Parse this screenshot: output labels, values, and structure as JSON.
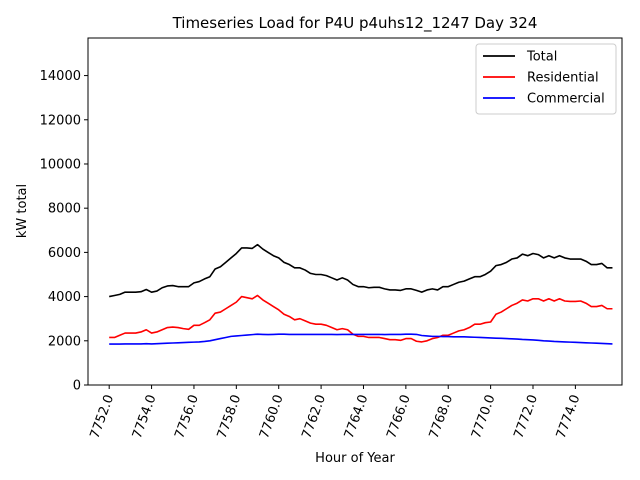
{
  "chart_data": {
    "type": "line",
    "title": "Timeseries Load for P4U p4uhs12_1247  Day 324",
    "xlabel": "Hour of Year",
    "ylabel": "kW total",
    "xlim": [
      7751.0,
      7776.2
    ],
    "ylim": [
      0,
      15700
    ],
    "x_ticks": [
      7752,
      7754,
      7756,
      7758,
      7760,
      7762,
      7764,
      7766,
      7768,
      7770,
      7772,
      7774
    ],
    "x_tick_labels": [
      "7752.0",
      "7754.0",
      "7756.0",
      "7758.0",
      "7760.0",
      "7762.0",
      "7764.0",
      "7766.0",
      "7768.0",
      "7770.0",
      "7772.0",
      "7774.0"
    ],
    "y_ticks": [
      0,
      2000,
      4000,
      6000,
      8000,
      10000,
      12000,
      14000
    ],
    "y_tick_labels": [
      "0",
      "2000",
      "4000",
      "6000",
      "8000",
      "10000",
      "12000",
      "14000"
    ],
    "grid": false,
    "legend_position": "top-right",
    "x": [
      7752.0,
      7752.25,
      7752.5,
      7752.75,
      7753.0,
      7753.25,
      7753.5,
      7753.75,
      7754.0,
      7754.25,
      7754.5,
      7754.75,
      7755.0,
      7755.25,
      7755.5,
      7755.75,
      7756.0,
      7756.25,
      7756.5,
      7756.75,
      7757.0,
      7757.25,
      7757.5,
      7757.75,
      7758.0,
      7758.25,
      7758.5,
      7758.75,
      7759.0,
      7759.25,
      7759.5,
      7759.75,
      7760.0,
      7760.25,
      7760.5,
      7760.75,
      7761.0,
      7761.25,
      7761.5,
      7761.75,
      7762.0,
      7762.25,
      7762.5,
      7762.75,
      7763.0,
      7763.25,
      7763.5,
      7763.75,
      7764.0,
      7764.25,
      7764.5,
      7764.75,
      7765.0,
      7765.25,
      7765.5,
      7765.75,
      7766.0,
      7766.25,
      7766.5,
      7766.75,
      7767.0,
      7767.25,
      7767.5,
      7767.75,
      7768.0,
      7768.25,
      7768.5,
      7768.75,
      7769.0,
      7769.25,
      7769.5,
      7769.75,
      7770.0,
      7770.25,
      7770.5,
      7770.75,
      7771.0,
      7771.25,
      7771.5,
      7771.75,
      7772.0,
      7772.25,
      7772.5,
      7772.75,
      7773.0,
      7773.25,
      7773.5,
      7773.75,
      7774.0,
      7774.25,
      7774.5,
      7774.75,
      7775.0,
      7775.25,
      7775.5,
      7775.75
    ],
    "series": [
      {
        "name": "Total",
        "color": "#000000",
        "values": [
          4000,
          4050,
          4100,
          4200,
          4200,
          4200,
          4220,
          4320,
          4200,
          4250,
          4400,
          4480,
          4500,
          4450,
          4450,
          4450,
          4620,
          4680,
          4800,
          4900,
          5250,
          5350,
          5550,
          5750,
          5950,
          6200,
          6200,
          6180,
          6350,
          6150,
          6000,
          5850,
          5750,
          5550,
          5450,
          5300,
          5300,
          5200,
          5050,
          5000,
          5000,
          4950,
          4850,
          4750,
          4850,
          4750,
          4550,
          4450,
          4450,
          4400,
          4420,
          4420,
          4350,
          4300,
          4300,
          4280,
          4350,
          4350,
          4280,
          4200,
          4300,
          4350,
          4300,
          4450,
          4450,
          4550,
          4650,
          4700,
          4800,
          4900,
          4900,
          5000,
          5150,
          5400,
          5450,
          5550,
          5700,
          5750,
          5920,
          5850,
          5950,
          5900,
          5750,
          5850,
          5750,
          5850,
          5750,
          5700,
          5700,
          5700,
          5600,
          5450,
          5450,
          5500,
          5300,
          5300
        ]
      },
      {
        "name": "Residential",
        "color": "#ff0000",
        "values": [
          2150,
          2150,
          2250,
          2350,
          2350,
          2350,
          2400,
          2500,
          2350,
          2400,
          2500,
          2600,
          2620,
          2600,
          2550,
          2520,
          2700,
          2700,
          2820,
          2950,
          3250,
          3300,
          3450,
          3600,
          3750,
          4000,
          3950,
          3900,
          4050,
          3850,
          3700,
          3550,
          3400,
          3200,
          3100,
          2950,
          3000,
          2900,
          2800,
          2750,
          2750,
          2700,
          2600,
          2500,
          2550,
          2500,
          2300,
          2200,
          2200,
          2150,
          2150,
          2150,
          2100,
          2050,
          2050,
          2020,
          2100,
          2100,
          1980,
          1950,
          2000,
          2100,
          2150,
          2250,
          2250,
          2350,
          2450,
          2500,
          2600,
          2750,
          2750,
          2820,
          2850,
          3200,
          3300,
          3450,
          3600,
          3700,
          3850,
          3800,
          3900,
          3900,
          3800,
          3900,
          3800,
          3900,
          3800,
          3780,
          3780,
          3800,
          3700,
          3550,
          3550,
          3600,
          3450,
          3450
        ]
      },
      {
        "name": "Commercial",
        "color": "#0000ff",
        "values": [
          1850,
          1850,
          1850,
          1860,
          1860,
          1860,
          1860,
          1870,
          1860,
          1870,
          1880,
          1890,
          1900,
          1910,
          1920,
          1930,
          1940,
          1950,
          1970,
          2000,
          2050,
          2100,
          2150,
          2200,
          2220,
          2240,
          2260,
          2280,
          2300,
          2290,
          2280,
          2290,
          2300,
          2300,
          2290,
          2290,
          2290,
          2290,
          2290,
          2290,
          2290,
          2290,
          2290,
          2280,
          2290,
          2290,
          2290,
          2290,
          2290,
          2290,
          2290,
          2290,
          2280,
          2290,
          2290,
          2290,
          2300,
          2300,
          2290,
          2240,
          2220,
          2200,
          2200,
          2190,
          2190,
          2180,
          2180,
          2180,
          2170,
          2160,
          2150,
          2140,
          2130,
          2120,
          2110,
          2100,
          2090,
          2080,
          2060,
          2050,
          2040,
          2020,
          2000,
          1990,
          1970,
          1960,
          1950,
          1940,
          1930,
          1920,
          1910,
          1900,
          1890,
          1880,
          1870,
          1860
        ]
      }
    ]
  }
}
